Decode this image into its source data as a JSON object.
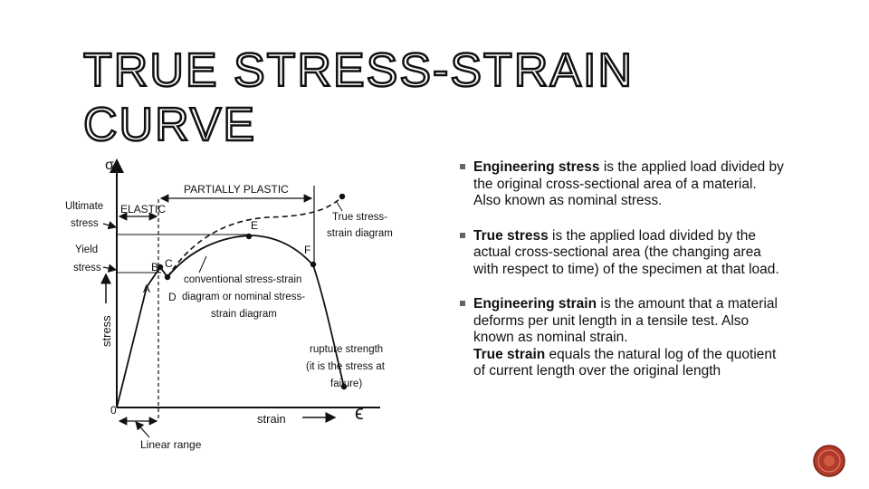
{
  "slide": {
    "title_line1": "TRUE STRESS-STRAIN",
    "title_line2": "CURVE",
    "accent_color": "#b23a2a"
  },
  "diagram": {
    "sigma": "σ",
    "epsilon": "ϵ",
    "origin": "0",
    "ultimate_stress": [
      "Ultimate",
      "stress"
    ],
    "yield_stress": [
      "Yield",
      "stress"
    ],
    "elastic": "ELASTIC",
    "partially_plastic": "PARTIALLY PLASTIC",
    "true_diagram": [
      "True stress-",
      "strain diagram"
    ],
    "conventional": [
      "conventional stress-strain",
      "diagram or nominal stress-",
      "strain diagram"
    ],
    "rupture": [
      "rupture strength",
      "(it is the stress at",
      "failure)"
    ],
    "stress_axis": "stress",
    "strain_axis": "strain",
    "linear_range": "Linear range",
    "points": {
      "A": "A",
      "B": "B",
      "C": "C",
      "D": "D",
      "E": "E",
      "F": "F"
    }
  },
  "bullets": [
    {
      "term": "Engineering stress",
      "text": " is the applied load divided by the original cross-sectional area of a material. Also known as nominal stress."
    },
    {
      "term": "True stress",
      "text": " is the applied load divided by the actual cross-sectional area (the changing area with respect to time) of the specimen at that load."
    },
    {
      "term": "Engineering strain",
      "text": " is the amount that a material deforms per unit length in a tensile test. Also known as nominal strain.",
      "term2": "True strain",
      "text2": " equals the natural log of the quotient of current length over the original length"
    }
  ]
}
